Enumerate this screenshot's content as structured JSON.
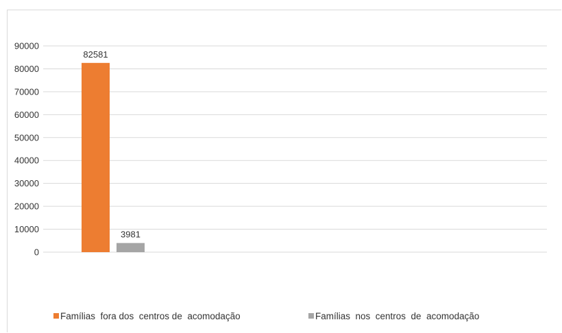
{
  "chart_data": {
    "type": "bar",
    "categories": [
      ""
    ],
    "series": [
      {
        "name": "Famílias  fora dos  centros de  acomodação",
        "values": [
          82581
        ],
        "color": "#ED7D31",
        "label": "82581"
      },
      {
        "name": "Famílias  nos  centros  de  acomodação",
        "values": [
          3981
        ],
        "color": "#A5A5A5",
        "label": "3981"
      }
    ],
    "ylim": [
      0,
      90000
    ],
    "yticks": [
      "0",
      "10000",
      "20000",
      "30000",
      "40000",
      "50000",
      "60000",
      "70000",
      "80000",
      "90000"
    ],
    "grid": true,
    "legend_position": "bottom-left",
    "title": "",
    "xlabel": "",
    "ylabel": ""
  }
}
